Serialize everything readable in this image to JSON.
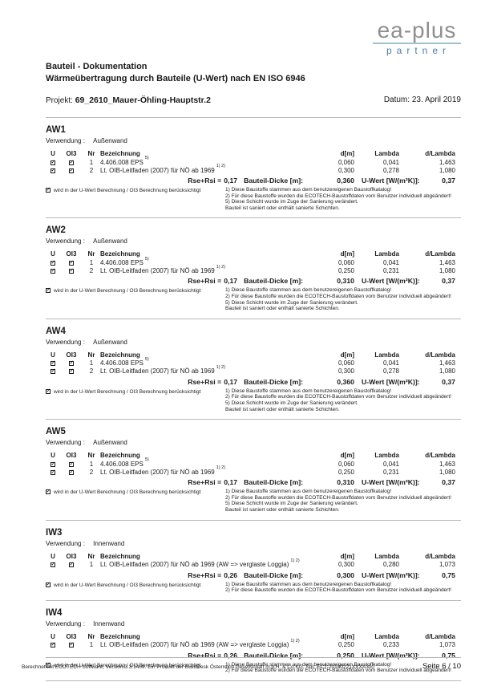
{
  "logo": {
    "brand": "ea-plus",
    "sub": "partner",
    "accent_line_color": "#9dc3cd",
    "brand_color": "#8f8f8f",
    "sub_color": "#4b7da2"
  },
  "header": {
    "title_line1": "Bauteil - Dokumentation",
    "title_line2": "Wärmeübertragung durch Bauteile (U-Wert) nach EN ISO 6946",
    "project_label": "Projekt:",
    "project_name": "69_2610_Mauer-Öhling-Hauptstr.2",
    "date_label": "Datum:",
    "date_value": "23. April 2019"
  },
  "labels": {
    "verwendung": "Verwendung :",
    "col_u": "U",
    "col_oi3": "OI3",
    "col_nr": "Nr",
    "col_bez": "Bezeichnung",
    "col_d": "d[m]",
    "col_lambda": "Lambda",
    "col_dlambda": "d/Lambda",
    "rse_prefix": "Rse+Rsi =",
    "dicke_label": "Bauteil-Dicke [m]:",
    "uwert_label": "U-Wert [W/(m²K)]:",
    "note": "wird in der U-Wert Berechnung / OI3 Berechnung berücksichtigt"
  },
  "sections": [
    {
      "id": "AW1",
      "usage": "Außenwand",
      "rows": [
        {
          "u": true,
          "oi3": true,
          "nr": "1",
          "name": "4.406.008 EPS",
          "sup": "5)",
          "d": "0,060",
          "lambda": "0,041",
          "dlambda": "1,463"
        },
        {
          "u": true,
          "oi3": true,
          "nr": "2",
          "name": "Lt. OIB-Leitfaden (2007) für NÖ ab 1969",
          "sup": "1) 2)",
          "d": "0,300",
          "lambda": "0,278",
          "dlambda": "1,080"
        }
      ],
      "rse": "0,17",
      "dicke": "0,360",
      "uwert": "0,37",
      "footnotes": [
        "1) Diese Baustoffe stammen aus dem benutzereigenen Baustoffkatalog!",
        "2) Für diese Baustoffe wurden die ECOTECH-Baustoffdaten vom Benutzer individuell abgeändert!",
        "5) Diese Schicht wurde im Zuge der Sanierung verändert.",
        "Bauteil ist saniert oder enthält sanierte Schichten."
      ]
    },
    {
      "id": "AW2",
      "usage": "Außenwand",
      "rows": [
        {
          "u": true,
          "oi3": true,
          "nr": "1",
          "name": "4.406.008 EPS",
          "sup": "5)",
          "d": "0,060",
          "lambda": "0,041",
          "dlambda": "1,463"
        },
        {
          "u": true,
          "oi3": true,
          "nr": "2",
          "name": "Lt. OIB-Leitfaden (2007) für NÖ ab 1969",
          "sup": "1) 2)",
          "d": "0,250",
          "lambda": "0,231",
          "dlambda": "1,080"
        }
      ],
      "rse": "0,17",
      "dicke": "0,310",
      "uwert": "0,37",
      "footnotes": [
        "1) Diese Baustoffe stammen aus dem benutzereigenen Baustoffkatalog!",
        "2) Für diese Baustoffe wurden die ECOTECH-Baustoffdaten vom Benutzer individuell abgeändert!",
        "5) Diese Schicht wurde im Zuge der Sanierung verändert.",
        "Bauteil ist saniert oder enthält sanierte Schichten."
      ]
    },
    {
      "id": "AW4",
      "usage": "Außenwand",
      "rows": [
        {
          "u": true,
          "oi3": true,
          "nr": "1",
          "name": "4.406.008 EPS",
          "sup": "5)",
          "d": "0,060",
          "lambda": "0,041",
          "dlambda": "1,463"
        },
        {
          "u": true,
          "oi3": true,
          "nr": "2",
          "name": "Lt. OIB-Leitfaden (2007) für NÖ ab 1969",
          "sup": "1) 2)",
          "d": "0,300",
          "lambda": "0,278",
          "dlambda": "1,080"
        }
      ],
      "rse": "0,17",
      "dicke": "0,360",
      "uwert": "0,37",
      "footnotes": [
        "1) Diese Baustoffe stammen aus dem benutzereigenen Baustoffkatalog!",
        "2) Für diese Baustoffe wurden die ECOTECH-Baustoffdaten vom Benutzer individuell abgeändert!",
        "5) Diese Schicht wurde im Zuge der Sanierung verändert.",
        "Bauteil ist saniert oder enthält sanierte Schichten."
      ]
    },
    {
      "id": "AW5",
      "usage": "Außenwand",
      "rows": [
        {
          "u": true,
          "oi3": true,
          "nr": "1",
          "name": "4.406.008 EPS",
          "sup": "5)",
          "d": "0,060",
          "lambda": "0,041",
          "dlambda": "1,463"
        },
        {
          "u": true,
          "oi3": true,
          "nr": "2",
          "name": "Lt. OIB-Leitfaden (2007) für NÖ ab 1969",
          "sup": "1) 2)",
          "d": "0,250",
          "lambda": "0,231",
          "dlambda": "1,080"
        }
      ],
      "rse": "0,17",
      "dicke": "0,310",
      "uwert": "0,37",
      "footnotes": [
        "1) Diese Baustoffe stammen aus dem benutzereigenen Baustoffkatalog!",
        "2) Für diese Baustoffe wurden die ECOTECH-Baustoffdaten vom Benutzer individuell abgeändert!",
        "5) Diese Schicht wurde im Zuge der Sanierung verändert.",
        "Bauteil ist saniert oder enthält sanierte Schichten."
      ]
    },
    {
      "id": "IW3",
      "usage": "Innenwand",
      "rows": [
        {
          "u": true,
          "oi3": true,
          "nr": "1",
          "name": "Lt. OIB-Leitfaden (2007) für NÖ ab 1969 (AW => verglaste Loggia)",
          "sup": "1) 2)",
          "d": "0,300",
          "lambda": "0,280",
          "dlambda": "1,073"
        }
      ],
      "rse": "0,26",
      "dicke": "0,300",
      "uwert": "0,75",
      "footnotes": [
        "1) Diese Baustoffe stammen aus dem benutzereigenen Baustoffkatalog!",
        "2) Für diese Baustoffe wurden die ECOTECH-Baustoffdaten vom Benutzer individuell abgeändert!"
      ]
    },
    {
      "id": "IW4",
      "usage": "Innenwand",
      "rows": [
        {
          "u": true,
          "oi3": true,
          "nr": "1",
          "name": "Lt. OIB-Leitfaden (2007) für NÖ ab 1969 (AW => verglaste Loggia)",
          "sup": "1) 2)",
          "d": "0,250",
          "lambda": "0,233",
          "dlambda": "1,073"
        }
      ],
      "rse": "0,26",
      "dicke": "0,250",
      "uwert": "0,75",
      "footnotes": [
        "1) Diese Baustoffe stammen aus dem benutzereigenen Baustoffkatalog!",
        "2) Für diese Baustoffe wurden die ECOTECH-Baustoffdaten vom Benutzer individuell abgeändert!"
      ]
    }
  ],
  "footer": {
    "left": "Berechnet mit ECOTECH Software, Version 3.3.1409. Ein Produkt der BuildDesk Österreich Gesellschaft m.b.H. & Co.KG; Snr: ECT-20180221XXXA300",
    "page": "Seite 6 / 10"
  }
}
